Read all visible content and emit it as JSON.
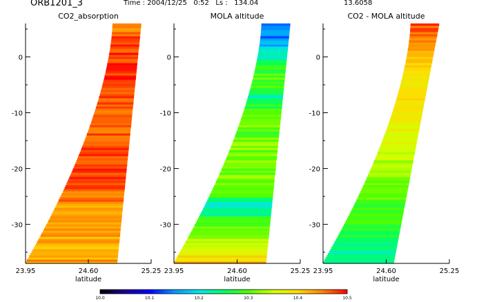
{
  "header": {
    "orbit": "ORB1201_3",
    "time": "Time : 2004/12/25   0:52   Ls :   134.04",
    "value": "13.6058"
  },
  "chart_data": [
    {
      "type": "heatmap",
      "title": "CO2_absorption",
      "xlabel": "latitude",
      "x_ticks": [
        "23.95",
        "24.60",
        "25.25"
      ],
      "xlim": [
        23.95,
        25.25
      ],
      "y_ticks": [
        "0",
        "-10",
        "-20",
        "-30"
      ],
      "ylim": [
        -37,
        6
      ],
      "swath_edges": {
        "bottom": [
          23.95,
          24.9
        ],
        "top": [
          24.85,
          25.15
        ]
      },
      "profile": [
        [
          -37,
          10.44
        ],
        [
          -34,
          10.42
        ],
        [
          -30,
          10.43
        ],
        [
          -25,
          10.45
        ],
        [
          -20,
          10.48
        ],
        [
          -15,
          10.47
        ],
        [
          -10,
          10.47
        ],
        [
          -5,
          10.48
        ],
        [
          0,
          10.48
        ],
        [
          3,
          10.47
        ],
        [
          6,
          10.45
        ]
      ],
      "variability": 0.025
    },
    {
      "type": "heatmap",
      "title": "MOLA altitude",
      "xlabel": "latitude",
      "x_ticks": [
        "23.95",
        "24.60",
        "25.25"
      ],
      "xlim": [
        23.95,
        25.25
      ],
      "y_ticks": [
        "0",
        "-10",
        "-20",
        "-30"
      ],
      "ylim": [
        -37,
        6
      ],
      "swath_edges": {
        "bottom": [
          23.95,
          24.9
        ],
        "top": [
          24.85,
          25.15
        ]
      },
      "profile": [
        [
          -37,
          10.42
        ],
        [
          -34,
          10.36
        ],
        [
          -30,
          10.3
        ],
        [
          -26,
          10.2
        ],
        [
          -25,
          10.29
        ],
        [
          -20,
          10.32
        ],
        [
          -15,
          10.31
        ],
        [
          -10,
          10.3
        ],
        [
          -7,
          10.22
        ],
        [
          -5,
          10.3
        ],
        [
          -2,
          10.28
        ],
        [
          0,
          10.22
        ],
        [
          3,
          10.15
        ],
        [
          6,
          10.12
        ]
      ],
      "variability": 0.03
    },
    {
      "type": "heatmap",
      "title": "CO2 - MOLA altitude",
      "xlabel": "latitude",
      "x_ticks": [
        "23.95",
        "24.60",
        "25.25"
      ],
      "xlim": [
        23.95,
        25.25
      ],
      "y_ticks": [
        "0",
        "-10",
        "-20",
        "-30"
      ],
      "ylim": [
        -37,
        6
      ],
      "swath_edges": {
        "bottom": [
          23.95,
          24.68
        ],
        "top": [
          24.85,
          25.15
        ]
      },
      "profile": [
        [
          -37,
          10.22
        ],
        [
          -34,
          10.24
        ],
        [
          -30,
          10.28
        ],
        [
          -25,
          10.3
        ],
        [
          -20,
          10.33
        ],
        [
          -15,
          10.36
        ],
        [
          -10,
          10.38
        ],
        [
          -7,
          10.41
        ],
        [
          -5,
          10.38
        ],
        [
          -2,
          10.4
        ],
        [
          0,
          10.42
        ],
        [
          3,
          10.45
        ],
        [
          6,
          10.47
        ]
      ],
      "variability": 0.02
    }
  ],
  "colorbar": {
    "min": 10.0,
    "max": 10.5,
    "ticks": [
      "10.0",
      "10.1",
      "10.2",
      "10.3",
      "10.4",
      "10.5"
    ],
    "colors": [
      "#000000",
      "#1a0096",
      "#0000ff",
      "#0096ff",
      "#00e6e6",
      "#00ff64",
      "#50ff00",
      "#d2ff00",
      "#ffdc00",
      "#ff8200",
      "#ff0000"
    ]
  }
}
